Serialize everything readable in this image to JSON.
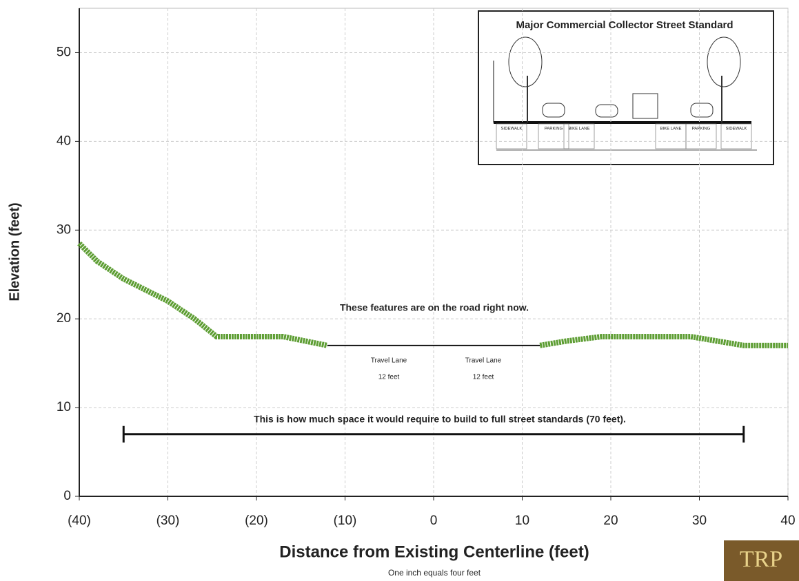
{
  "chart_data": {
    "type": "line",
    "x_label": "Distance from Existing Centerline (feet)",
    "y_label": "Elevation (feet)",
    "note": "One inch equals four feet",
    "logo": "TRP",
    "xlim": [
      -40,
      40
    ],
    "ylim": [
      0,
      55
    ],
    "xticks": [
      {
        "value": -40,
        "label": "(40)"
      },
      {
        "value": -30,
        "label": "(30)"
      },
      {
        "value": -20,
        "label": "(20)"
      },
      {
        "value": -10,
        "label": "(10)"
      },
      0,
      10,
      20,
      30,
      40
    ],
    "yticks": [
      0,
      10,
      20,
      30,
      40,
      50
    ],
    "grid": true,
    "series": [
      {
        "color": "#5e9e34",
        "x": [
          -40,
          -38,
          -35,
          -30,
          -27,
          -24.5,
          -20,
          -17,
          -12
        ],
        "values": [
          28.5,
          26.5,
          24.5,
          22,
          20,
          18,
          18,
          18,
          17
        ]
      },
      {
        "color": "#111111",
        "x": [
          -12,
          12
        ],
        "values": [
          17,
          17
        ]
      },
      {
        "color": "#5e9e34",
        "x": [
          12,
          15,
          19,
          25,
          29,
          35,
          40
        ],
        "values": [
          17,
          17.5,
          18,
          18,
          18,
          17,
          17
        ]
      },
      {
        "color": "#111111",
        "x": [
          -35,
          35
        ],
        "values": [
          7,
          7
        ]
      }
    ],
    "annotations": [
      "These features are on the road right now.",
      "Travel Lane",
      "12 feet",
      "Travel Lane",
      "12 feet",
      "This is how much space it would require to build to full street standards (70 feet)."
    ],
    "inset": {
      "title": "Major Commercial Collector Street Standard",
      "labels": [
        "SIDEWALK",
        "PARKING",
        "BIKE LANE",
        "BIKE LANE",
        "PARKING",
        "SIDEWALK"
      ]
    }
  }
}
